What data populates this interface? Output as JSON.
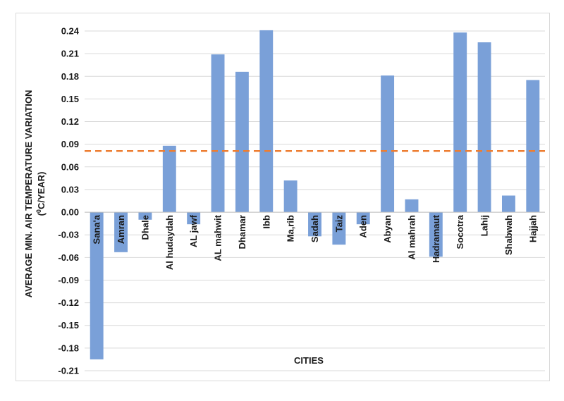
{
  "chart_data": {
    "type": "bar",
    "xlabel": "CITIES",
    "ylabel_line1": "AVERAGE MIN. AIR TEMPERATURE VARIATION",
    "ylabel_line2_pre": "(",
    "ylabel_line2_sup": "0",
    "ylabel_line2_post": "C/YEAR)",
    "ylim": [
      -0.21,
      0.24
    ],
    "yticks": [
      0.24,
      0.21,
      0.18,
      0.15,
      0.12,
      0.09,
      0.06,
      0.03,
      0.0,
      -0.03,
      -0.06,
      -0.09,
      -0.12,
      -0.15,
      -0.18,
      -0.21
    ],
    "ytick_labels": [
      "0.24",
      "0.21",
      "0.18",
      "0.15",
      "0.12",
      "0.09",
      "0.06",
      "0.03",
      "0.00",
      "-0.03",
      "-0.06",
      "-0.09",
      "-0.12",
      "-0.15",
      "-0.18",
      "-0.21"
    ],
    "categories": [
      "Sana'a",
      "Amran",
      "Dhale",
      "Al hudaydah",
      "AL jawf",
      "AL mahwit",
      "Dhamar",
      "Ibb",
      "Ma,rib",
      "Sadah",
      "Taiz",
      "Aden",
      "Abyan",
      "Al mahrah",
      "Hadramaut",
      "Socotra",
      "Lahij",
      "Shabwah",
      "Hajjah"
    ],
    "values": [
      -0.195,
      -0.053,
      -0.01,
      0.088,
      -0.016,
      0.209,
      0.186,
      0.241,
      0.042,
      -0.032,
      -0.043,
      -0.016,
      0.181,
      0.017,
      -0.059,
      0.238,
      0.225,
      0.022,
      0.175
    ],
    "reference_line": 0.081,
    "grid": true,
    "colors": {
      "bar": "#7aa0d8",
      "reference": "#ed7d31",
      "grid": "#d9d9d9"
    }
  }
}
